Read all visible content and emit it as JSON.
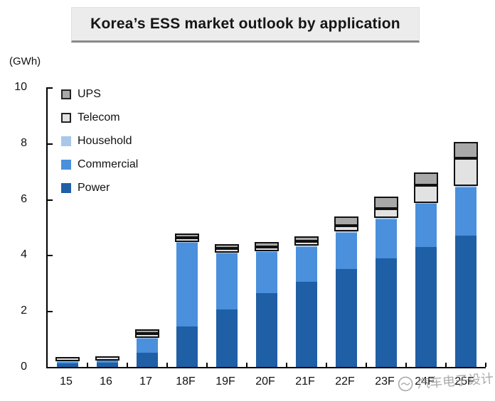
{
  "header": {
    "title": "Korea’s ESS market outlook by application"
  },
  "axis": {
    "unit_label": "(GWh)"
  },
  "watermark": {
    "text": "汽车电子设计",
    "icon": "circle-logo-icon"
  },
  "colors": {
    "power": "#1F5FA5",
    "commercial": "#4A90DC",
    "household": "#A9C7E9",
    "telecom": "#E2E2E2",
    "ups": "#A8A8A8",
    "segment_border": "#111111",
    "title_bg": "#ECECEC",
    "axis": "#000000"
  },
  "chart_data": {
    "type": "bar",
    "stacked": true,
    "title": "Korea’s ESS market outlook by application",
    "xlabel": "",
    "ylabel": "(GWh)",
    "ylim": [
      0,
      10
    ],
    "yticks": [
      0,
      2,
      4,
      6,
      8,
      10
    ],
    "grid": false,
    "legend_position": "top-left-inside",
    "categories": [
      "15",
      "16",
      "17",
      "18F",
      "19F",
      "20F",
      "21F",
      "22F",
      "23F",
      "24F",
      "25F"
    ],
    "series": [
      {
        "name": "Power",
        "color": "#1F5FA5",
        "bordered": false,
        "values": [
          0.13,
          0.15,
          0.52,
          1.45,
          2.05,
          2.65,
          3.05,
          3.5,
          3.88,
          4.28,
          4.7
        ]
      },
      {
        "name": "Commercial",
        "color": "#4A90DC",
        "bordered": false,
        "values": [
          0.06,
          0.07,
          0.5,
          3.0,
          2.0,
          1.45,
          1.25,
          1.3,
          1.4,
          1.55,
          1.72
        ]
      },
      {
        "name": "Household",
        "color": "#A9C7E9",
        "bordered": false,
        "values": [
          0.01,
          0.01,
          0.02,
          0.03,
          0.03,
          0.03,
          0.03,
          0.04,
          0.04,
          0.04,
          0.05
        ]
      },
      {
        "name": "Telecom",
        "color": "#E2E2E2",
        "bordered": true,
        "values": [
          0.05,
          0.05,
          0.08,
          0.1,
          0.1,
          0.12,
          0.12,
          0.22,
          0.33,
          0.63,
          1.0
        ]
      },
      {
        "name": "UPS",
        "color": "#A8A8A8",
        "bordered": true,
        "values": [
          0.0,
          0.0,
          0.04,
          0.1,
          0.15,
          0.18,
          0.2,
          0.33,
          0.45,
          0.45,
          0.58
        ]
      }
    ],
    "totals": [
      0.25,
      0.28,
      1.16,
      4.68,
      4.33,
      4.43,
      4.65,
      5.39,
      6.1,
      6.95,
      8.05
    ],
    "legend": [
      {
        "label": "UPS",
        "color": "#A8A8A8",
        "bordered": true
      },
      {
        "label": "Telecom",
        "color": "#E2E2E2",
        "bordered": true
      },
      {
        "label": "Household",
        "color": "#A9C7E9",
        "bordered": false
      },
      {
        "label": "Commercial",
        "color": "#4A90DC",
        "bordered": false
      },
      {
        "label": "Power",
        "color": "#1F5FA5",
        "bordered": false
      }
    ]
  }
}
